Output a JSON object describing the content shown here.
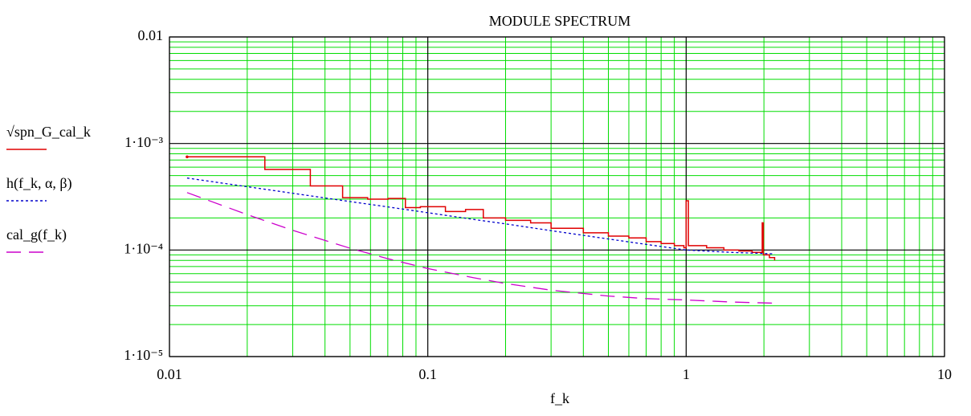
{
  "chart_data": {
    "type": "line",
    "title": "MODULE SPECTRUM",
    "x_label": "f_k",
    "xlog": true,
    "ylog": true,
    "grid": true,
    "minor_grid": true,
    "grid_color": "#00dd00",
    "major_grid_color": "#000000",
    "legend_position": "left",
    "xlim": [
      0.01,
      10
    ],
    "xticks": [
      0.01,
      0.1,
      1,
      10
    ],
    "ylim": [
      1e-05,
      0.01
    ],
    "yticks": [
      {
        "value": 1e-05,
        "label": "1·10⁻⁵"
      },
      {
        "value": 0.0001,
        "label": "1·10⁻⁴"
      },
      {
        "value": 0.001,
        "label": "1·10⁻³"
      },
      0.01
    ],
    "series": [
      {
        "name": "√spn_G_cal_k",
        "color": "#e00000",
        "style": "step",
        "x": [
          0.0117,
          0.0234,
          0.0351,
          0.0468,
          0.0585,
          0.0702,
          0.0819,
          0.0936,
          0.117,
          0.14,
          0.164,
          0.2,
          0.25,
          0.3,
          0.4,
          0.5,
          0.6,
          0.7,
          0.8,
          0.9,
          0.98,
          1.0,
          1.02,
          1.2,
          1.4,
          1.6,
          1.8,
          1.95,
          1.97,
          1.99,
          2.1,
          2.2
        ],
        "values": [
          0.00075,
          0.00057,
          0.0004,
          0.00031,
          0.0003,
          0.000305,
          0.00025,
          0.000255,
          0.00023,
          0.00024,
          0.0002,
          0.00019,
          0.00018,
          0.00016,
          0.000145,
          0.000135,
          0.00013,
          0.00012,
          0.000115,
          0.00011,
          0.000105,
          0.00029,
          0.00011,
          0.000105,
          0.0001,
          9.8e-05,
          9.5e-05,
          9.5e-05,
          0.00018,
          9e-05,
          8.5e-05,
          8e-05
        ]
      },
      {
        "name": "h(f_k, α, β)",
        "color": "#0000cc",
        "style": "dotted",
        "x": [
          0.0117,
          0.02,
          0.03,
          0.05,
          0.07,
          0.1,
          0.15,
          0.2,
          0.3,
          0.5,
          0.7,
          1,
          1.5,
          2.2
        ],
        "values": [
          0.000474,
          0.000393,
          0.000341,
          0.000285,
          0.000254,
          0.000224,
          0.000194,
          0.000176,
          0.000152,
          0.000127,
          0.000113,
          0.0001,
          9.5e-05,
          9.2e-05
        ]
      },
      {
        "name": "cal_g(f_k)",
        "color": "#cc00cc",
        "style": "dashed",
        "x": [
          0.0117,
          0.02,
          0.03,
          0.05,
          0.07,
          0.1,
          0.15,
          0.2,
          0.3,
          0.5,
          0.7,
          1,
          1.5,
          2.2
        ],
        "values": [
          0.000346,
          0.000215,
          0.000153,
          0.000104,
          8.3e-05,
          6.7e-05,
          5.5e-05,
          4.85e-05,
          4.2e-05,
          3.7e-05,
          3.5e-05,
          3.4e-05,
          3.25e-05,
          3.17e-05
        ]
      }
    ]
  }
}
